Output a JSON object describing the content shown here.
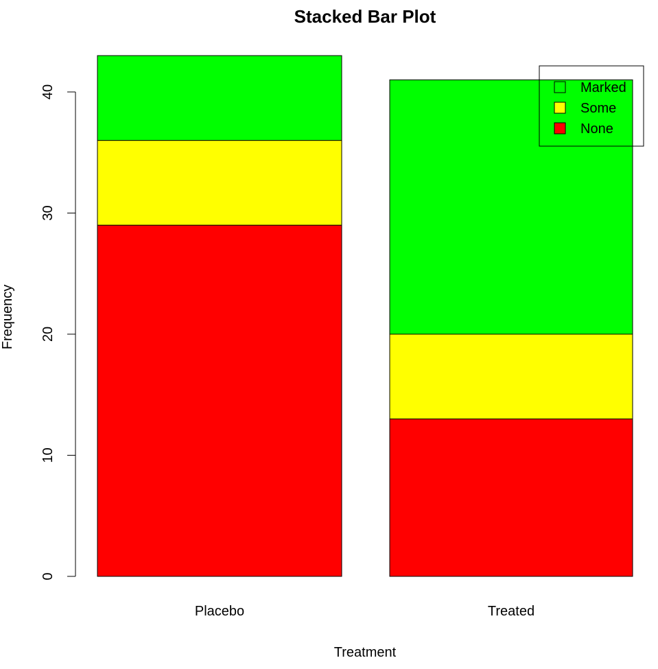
{
  "chart_data": {
    "type": "bar",
    "stacked": true,
    "title": "Stacked Bar Plot",
    "xlabel": "Treatment",
    "ylabel": "Frequency",
    "categories": [
      "Placebo",
      "Treated"
    ],
    "series": [
      {
        "name": "None",
        "values": [
          29,
          13
        ],
        "color": "#ff0000"
      },
      {
        "name": "Some",
        "values": [
          7,
          7
        ],
        "color": "#ffff00"
      },
      {
        "name": "Marked",
        "values": [
          7,
          21
        ],
        "color": "#00ff00"
      }
    ],
    "ylim": [
      0,
      43
    ],
    "yticks": [
      0,
      10,
      20,
      30,
      40
    ],
    "grid": false,
    "legend": {
      "placement": "top-right",
      "entries": [
        "Marked",
        "Some",
        "None"
      ]
    }
  }
}
